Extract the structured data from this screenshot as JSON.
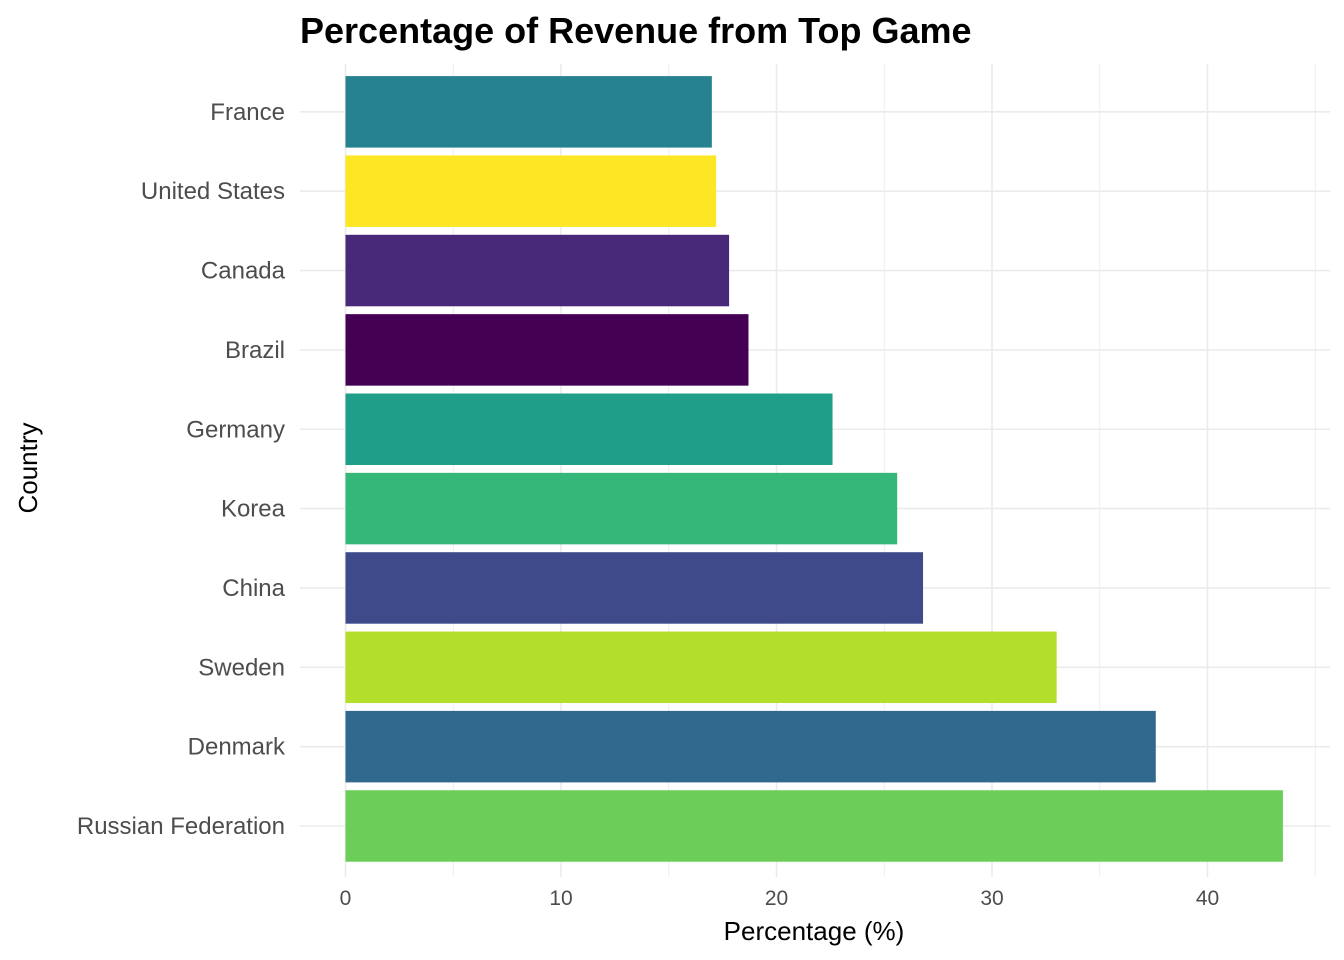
{
  "chart_data": {
    "type": "bar",
    "orientation": "horizontal",
    "title": "Percentage of Revenue from Top Game",
    "xlabel": "Percentage (%)",
    "ylabel": "Country",
    "categories": [
      "Russian Federation",
      "Denmark",
      "Sweden",
      "China",
      "Korea",
      "Germany",
      "Brazil",
      "Canada",
      "United States",
      "France"
    ],
    "values": [
      43.5,
      37.6,
      33.0,
      26.8,
      25.6,
      22.6,
      18.7,
      17.8,
      17.2,
      17.0
    ],
    "colors": [
      "#6CCE59",
      "#31688E",
      "#B4DE2C",
      "#3F4A8A",
      "#35B779",
      "#1F9E89",
      "#440154",
      "#482878",
      "#FDE725",
      "#26828E"
    ],
    "xlim": [
      0,
      45
    ],
    "xticks": [
      0,
      10,
      20,
      30,
      40
    ],
    "grid": true,
    "legend": "none"
  }
}
